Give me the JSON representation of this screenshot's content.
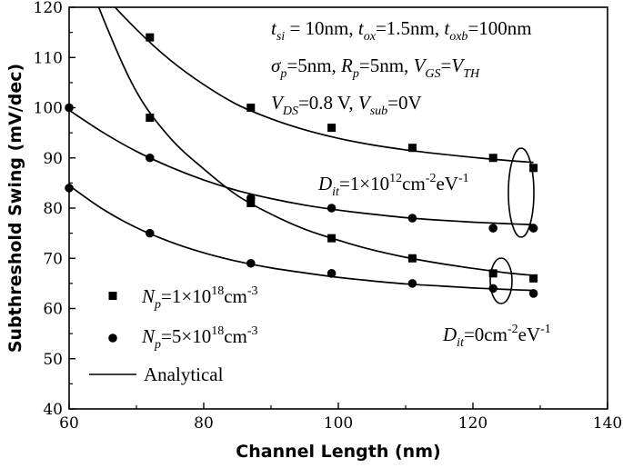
{
  "chart_data": {
    "type": "scatter",
    "xlabel": "Channel Length (nm)",
    "ylabel": "Subthreshold Swing (mV/dec)",
    "xlim": [
      60,
      140
    ],
    "ylim": [
      40,
      120
    ],
    "xticks": [
      "60",
      "80",
      "100",
      "120",
      "140"
    ],
    "yticks": [
      "40",
      "50",
      "60",
      "70",
      "80",
      "90",
      "100",
      "110",
      "120"
    ],
    "grid": false,
    "legend_position": "bottom-left",
    "legend": {
      "square": "N_p=1×10^18 cm^-3",
      "circle": "N_p=5×10^18 cm^-3",
      "line": "Analytical"
    },
    "parameters": {
      "line1": "t_si = 10nm, t_ox=1.5nm, t_oxb=100nm",
      "line2": "σ_p=5nm, R_p=5nm, V_GS=V_TH",
      "line3": "V_DS=0.8 V, V_sub=0V"
    },
    "annotations": {
      "dit_high": "D_it=1×10^12 cm^-2 eV^-1",
      "dit_zero": "D_it=0cm^-2 eV^-1"
    },
    "series": [
      {
        "marker": "square",
        "group": "dit_high",
        "x": [
          72,
          87,
          99,
          111,
          123,
          129
        ],
        "y": [
          114,
          100,
          96,
          92,
          90,
          88
        ],
        "curve_x": [
          60,
          65,
          70,
          75,
          80,
          85,
          90,
          95,
          100,
          105,
          110,
          115,
          120,
          125,
          129
        ],
        "curve_y": [
          133.5,
          123,
          115.6,
          109.5,
          104.6,
          100.6,
          97.8,
          95.6,
          93.9,
          92.6,
          91.6,
          90.8,
          90.1,
          89.5,
          89.1
        ]
      },
      {
        "marker": "circle",
        "group": "dit_high",
        "x": [
          60,
          72,
          87,
          99,
          111,
          123,
          129
        ],
        "y": [
          100,
          90,
          82,
          80,
          78,
          76,
          76
        ],
        "curve_x": [
          60,
          65,
          70,
          75,
          80,
          85,
          90,
          95,
          100,
          105,
          110,
          115,
          120,
          125,
          129
        ],
        "curve_y": [
          99.5,
          95.1,
          91.3,
          88.2,
          85.6,
          83.5,
          81.9,
          80.6,
          79.6,
          78.8,
          78.1,
          77.6,
          77.2,
          76.9,
          76.7
        ]
      },
      {
        "marker": "square",
        "group": "dit_zero",
        "x": [
          72,
          87,
          99,
          111,
          123,
          129
        ],
        "y": [
          98,
          81,
          74,
          70,
          67,
          66
        ],
        "curve_x": [
          60,
          65,
          70,
          75,
          80,
          85,
          90,
          95,
          100,
          105,
          110,
          115,
          120,
          125,
          129
        ],
        "curve_y": [
          136,
          118,
          103.2,
          94,
          87.8,
          82.5,
          78.8,
          75.8,
          73.6,
          71.7,
          70.2,
          69,
          68,
          67.1,
          66.6
        ]
      },
      {
        "marker": "circle",
        "group": "dit_zero",
        "x": [
          60,
          72,
          87,
          99,
          111,
          123,
          129
        ],
        "y": [
          84,
          75,
          69,
          67,
          65,
          64,
          63
        ],
        "curve_x": [
          60,
          65,
          70,
          75,
          80,
          85,
          90,
          95,
          100,
          105,
          110,
          115,
          120,
          125,
          129
        ],
        "curve_y": [
          84.5,
          79.8,
          76.1,
          73.3,
          71.1,
          69.4,
          68.1,
          67.1,
          66.2,
          65.5,
          64.9,
          64.5,
          64.1,
          63.8,
          63.6
        ]
      }
    ]
  }
}
